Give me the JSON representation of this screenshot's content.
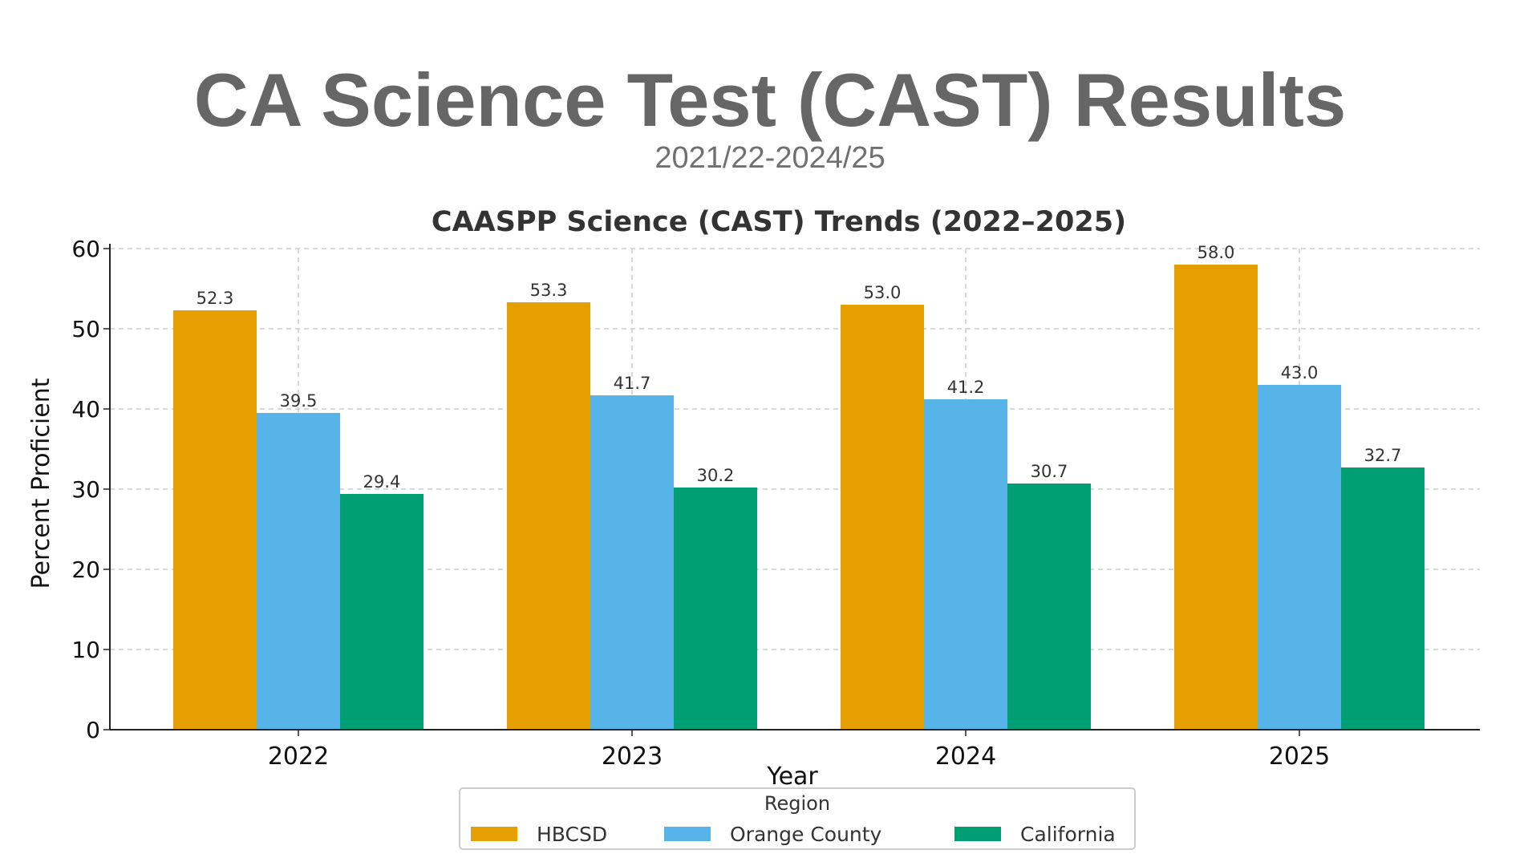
{
  "slide": {
    "title": "CA Science Test (CAST) Results",
    "subtitle": "2021/22-2024/25"
  },
  "chart_data": {
    "type": "bar",
    "title": "CAASPP Science (CAST) Trends (2022–2025)",
    "xlabel": "Year",
    "ylabel": "Percent Proficient",
    "categories": [
      "2022",
      "2023",
      "2024",
      "2025"
    ],
    "ylim": [
      0,
      60
    ],
    "yticks": [
      0,
      10,
      20,
      30,
      40,
      50,
      60
    ],
    "grid": true,
    "legend": {
      "title": "Region",
      "placement": "bottom-center"
    },
    "series": [
      {
        "name": "HBCSD",
        "color": "#E69F00",
        "values": [
          52.3,
          53.3,
          53.0,
          58.0
        ],
        "labels": [
          "52.3",
          "53.3",
          "53.0",
          "58.0"
        ]
      },
      {
        "name": "Orange County",
        "color": "#56B4E9",
        "values": [
          39.5,
          41.7,
          41.2,
          43.0
        ],
        "labels": [
          "39.5",
          "41.7",
          "41.2",
          "43.0"
        ]
      },
      {
        "name": "California",
        "color": "#009E73",
        "values": [
          29.4,
          30.2,
          30.7,
          32.7
        ],
        "labels": [
          "29.4",
          "30.2",
          "30.7",
          "32.7"
        ]
      }
    ]
  }
}
